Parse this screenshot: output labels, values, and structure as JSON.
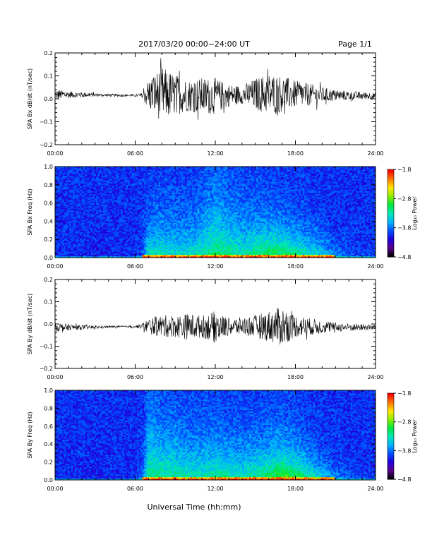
{
  "header": {
    "title": "2017/03/20  00:00−24:00 UT",
    "page": "Page 1/1"
  },
  "footer": {
    "xlabel": "Universal Time (hh:mm)"
  },
  "chart_data": [
    {
      "type": "line",
      "ylabel": "SPA Bx dB/dt (nT/sec)",
      "ylim": [
        -0.2,
        0.2
      ],
      "yticks": [
        0.2,
        0.1,
        0.0,
        -0.1,
        -0.2
      ],
      "ytick_labels": [
        "0.2",
        "0.1",
        "0.0",
        "−0.1",
        "−0.2"
      ],
      "xlim": [
        0,
        24
      ],
      "xticks": [
        0,
        6,
        12,
        18,
        24
      ],
      "xtick_labels": [
        "00:00",
        "06:00",
        "12:00",
        "18:00",
        "24:00"
      ],
      "series": [
        {
          "color": "#000000",
          "x": [
            0,
            1,
            2,
            3,
            4,
            5,
            6,
            6.5,
            7,
            8,
            9,
            10,
            11,
            12,
            13,
            14,
            15,
            16,
            17,
            18,
            19,
            20,
            21,
            22,
            23,
            24
          ],
          "mean": [
            0.018,
            0.018,
            0.018,
            0.017,
            0.016,
            0.015,
            0.015,
            0.015,
            0.02,
            0.02,
            0.018,
            0.015,
            0.012,
            0.012,
            0.015,
            0.018,
            0.02,
            0.022,
            0.022,
            0.02,
            0.018,
            0.016,
            0.015,
            0.014,
            0.013,
            0.012
          ],
          "amplitude": [
            0.025,
            0.015,
            0.012,
            0.008,
            0.006,
            0.005,
            0.005,
            0.01,
            0.07,
            0.12,
            0.09,
            0.07,
            0.08,
            0.08,
            0.05,
            0.04,
            0.07,
            0.09,
            0.08,
            0.06,
            0.05,
            0.035,
            0.025,
            0.02,
            0.018,
            0.015
          ]
        }
      ]
    },
    {
      "type": "heatmap",
      "ylabel": "SPA Bx Freq (Hz)",
      "ylim": [
        0.0,
        1.0
      ],
      "yticks": [
        1.0,
        0.8,
        0.6,
        0.4,
        0.2,
        0.0
      ],
      "ytick_labels": [
        "1.0",
        "0.8",
        "0.6",
        "0.4",
        "0.2",
        "0.0"
      ],
      "xlim": [
        0,
        24
      ],
      "xticks": [
        0,
        6,
        12,
        18,
        24
      ],
      "xtick_labels": [
        "00:00",
        "06:00",
        "12:00",
        "18:00",
        "24:00"
      ],
      "colorbar": {
        "label": "Log₁₀ Power",
        "range": [
          -4.8,
          -1.8
        ],
        "ticks": [
          -1.8,
          -2.8,
          -3.8,
          -4.8
        ],
        "tick_labels": [
          "−1.8",
          "−2.8",
          "−3.8",
          "−4.8"
        ],
        "colors": [
          "#000000",
          "#5a008c",
          "#1e00dc",
          "#0050ff",
          "#00b4ff",
          "#00e6b4",
          "#00e63c",
          "#8cf000",
          "#ffe600",
          "#ff7800",
          "#ff0000"
        ]
      },
      "intensity_profile": {
        "hours": [
          0,
          3,
          6,
          6.5,
          7,
          8,
          9,
          10,
          11,
          12,
          13,
          14,
          15,
          16,
          17,
          18,
          19,
          20,
          21,
          22,
          23,
          24
        ],
        "level": [
          0.0,
          -0.05,
          0.0,
          0.05,
          0.45,
          0.45,
          0.4,
          0.4,
          0.45,
          0.55,
          0.5,
          0.45,
          0.55,
          0.65,
          0.65,
          0.6,
          0.45,
          0.35,
          0.2,
          0.1,
          0.05,
          0.05
        ],
        "depth": [
          0.2,
          0.2,
          0.2,
          0.2,
          0.3,
          0.35,
          0.35,
          0.35,
          0.45,
          0.55,
          0.45,
          0.4,
          0.35,
          0.3,
          0.28,
          0.25,
          0.22,
          0.2,
          0.15,
          0.12,
          0.1,
          0.1
        ]
      }
    },
    {
      "type": "line",
      "ylabel": "SPA By dB/dt (nT/sec)",
      "ylim": [
        -0.2,
        0.2
      ],
      "yticks": [
        0.2,
        0.1,
        0.0,
        -0.1,
        -0.2
      ],
      "ytick_labels": [
        "0.2",
        "0.1",
        "0.0",
        "−0.1",
        "−0.2"
      ],
      "xlim": [
        0,
        24
      ],
      "xticks": [
        0,
        6,
        12,
        18,
        24
      ],
      "xtick_labels": [
        "00:00",
        "06:00",
        "12:00",
        "18:00",
        "24:00"
      ],
      "series": [
        {
          "color": "#000000",
          "x": [
            0,
            1,
            2,
            3,
            4,
            5,
            6,
            6.5,
            7,
            8,
            9,
            10,
            11,
            12,
            13,
            14,
            15,
            16,
            17,
            18,
            19,
            20,
            21,
            22,
            23,
            24
          ],
          "mean": [
            -0.015,
            -0.015,
            -0.015,
            -0.015,
            -0.013,
            -0.012,
            -0.012,
            -0.01,
            -0.01,
            -0.01,
            -0.01,
            -0.012,
            -0.012,
            -0.012,
            -0.012,
            -0.01,
            -0.01,
            -0.01,
            -0.01,
            -0.01,
            -0.012,
            -0.013,
            -0.014,
            -0.015,
            -0.015,
            -0.015
          ],
          "amplitude": [
            0.02,
            0.015,
            0.01,
            0.007,
            0.005,
            0.004,
            0.005,
            0.012,
            0.035,
            0.05,
            0.05,
            0.06,
            0.05,
            0.07,
            0.04,
            0.04,
            0.05,
            0.07,
            0.09,
            0.05,
            0.04,
            0.03,
            0.02,
            0.018,
            0.015,
            0.012
          ]
        }
      ]
    },
    {
      "type": "heatmap",
      "ylabel": "SPA By Freq (Hz)",
      "ylim": [
        0.0,
        1.0
      ],
      "yticks": [
        1.0,
        0.8,
        0.6,
        0.4,
        0.2,
        0.0
      ],
      "ytick_labels": [
        "1.0",
        "0.8",
        "0.6",
        "0.4",
        "0.2",
        "0.0"
      ],
      "xlim": [
        0,
        24
      ],
      "xticks": [
        0,
        6,
        12,
        18,
        24
      ],
      "xtick_labels": [
        "00:00",
        "06:00",
        "12:00",
        "18:00",
        "24:00"
      ],
      "colorbar": {
        "label": "Log₁₀ Power",
        "range": [
          -4.8,
          -1.8
        ],
        "ticks": [
          -1.8,
          -2.8,
          -3.8,
          -4.8
        ],
        "tick_labels": [
          "−1.8",
          "−2.8",
          "−3.8",
          "−4.8"
        ],
        "colors": [
          "#000000",
          "#5a008c",
          "#1e00dc",
          "#0050ff",
          "#00b4ff",
          "#00e6b4",
          "#00e63c",
          "#8cf000",
          "#ffe600",
          "#ff7800",
          "#ff0000"
        ]
      },
      "intensity_profile": {
        "hours": [
          0,
          3,
          6,
          6.5,
          7,
          8,
          9,
          10,
          11,
          12,
          13,
          14,
          15,
          16,
          17,
          18,
          19,
          20,
          21,
          22,
          23,
          24
        ],
        "level": [
          0.0,
          -0.05,
          0.0,
          0.1,
          0.5,
          0.5,
          0.5,
          0.45,
          0.45,
          0.5,
          0.5,
          0.45,
          0.5,
          0.6,
          0.7,
          0.65,
          0.5,
          0.35,
          0.2,
          0.1,
          0.05,
          0.05
        ],
        "depth": [
          0.2,
          0.2,
          0.2,
          0.25,
          0.6,
          0.45,
          0.45,
          0.4,
          0.4,
          0.4,
          0.35,
          0.35,
          0.35,
          0.35,
          0.35,
          0.3,
          0.25,
          0.2,
          0.15,
          0.12,
          0.1,
          0.1
        ]
      }
    }
  ]
}
